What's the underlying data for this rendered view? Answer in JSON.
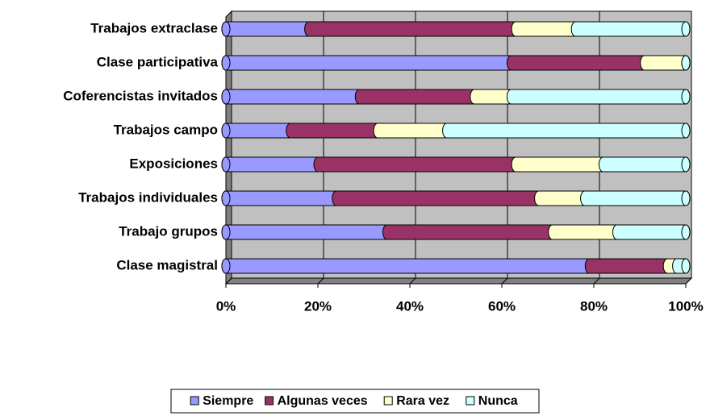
{
  "chart_data": {
    "type": "stacked_barh_100",
    "categories": [
      "Clase magistral",
      "Trabajo grupos",
      "Trabajos individuales",
      "Exposiciones",
      "Trabajos campo",
      "Coferencistas invitados",
      "Clase participativa",
      "Trabajos extraclase"
    ],
    "series": [
      {
        "name": "Siempre",
        "color": "#9999ff",
        "values": [
          79,
          35,
          24,
          20,
          14,
          29,
          62,
          18
        ]
      },
      {
        "name": "Algunas veces",
        "color": "#993366",
        "values": [
          17,
          36,
          44,
          43,
          19,
          25,
          29,
          45
        ]
      },
      {
        "name": "Rara vez",
        "color": "#ffffcc",
        "values": [
          2,
          14,
          10,
          19,
          15,
          8,
          9,
          13
        ]
      },
      {
        "name": "Nunca",
        "color": "#ccffff",
        "values": [
          2,
          15,
          22,
          18,
          52,
          38,
          0,
          24
        ]
      }
    ],
    "xlim": [
      0,
      100
    ],
    "xticks": [
      {
        "value": 0,
        "label": "0%"
      },
      {
        "value": 20,
        "label": "20%"
      },
      {
        "value": 40,
        "label": "40%"
      },
      {
        "value": 60,
        "label": "60%"
      },
      {
        "value": 80,
        "label": "80%"
      },
      {
        "value": 100,
        "label": "100%"
      }
    ],
    "grid": true,
    "legend": "bottom"
  }
}
